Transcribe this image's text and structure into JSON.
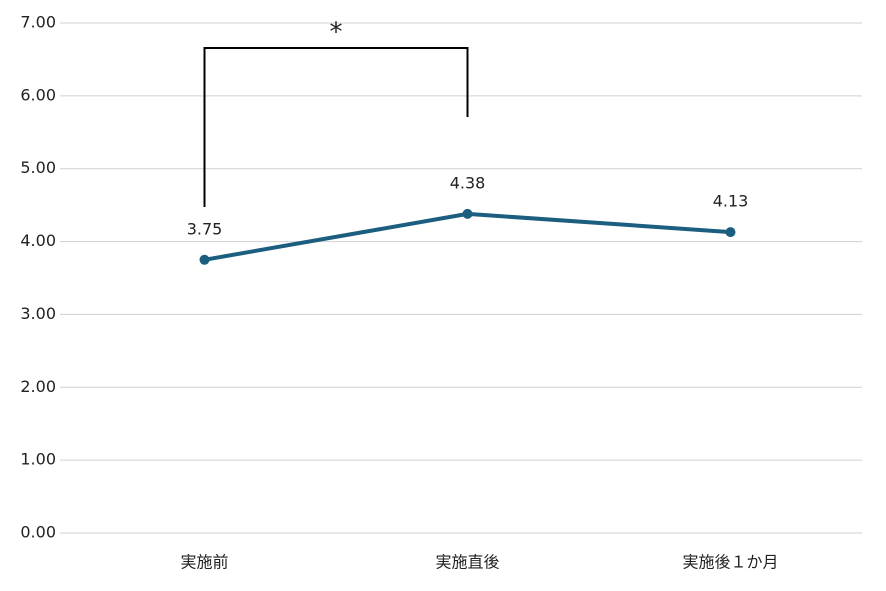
{
  "chart_data": {
    "type": "line",
    "categories": [
      "実施前",
      "実施直後",
      "実施後１か月"
    ],
    "series": [
      {
        "color": "#1b5e80",
        "values": [
          3.75,
          4.38,
          4.13
        ]
      }
    ],
    "ylim": [
      0,
      7
    ],
    "yticks": [
      {
        "value": 0,
        "label": "0.00"
      },
      {
        "value": 1,
        "label": "1.00"
      },
      {
        "value": 2,
        "label": "2.00"
      },
      {
        "value": 3,
        "label": "3.00"
      },
      {
        "value": 4,
        "label": "4.00"
      },
      {
        "value": 5,
        "label": "5.00"
      },
      {
        "value": 6,
        "label": "6.00"
      },
      {
        "value": 7,
        "label": "7.00"
      }
    ],
    "grid": true,
    "annotations": [
      "*"
    ]
  }
}
